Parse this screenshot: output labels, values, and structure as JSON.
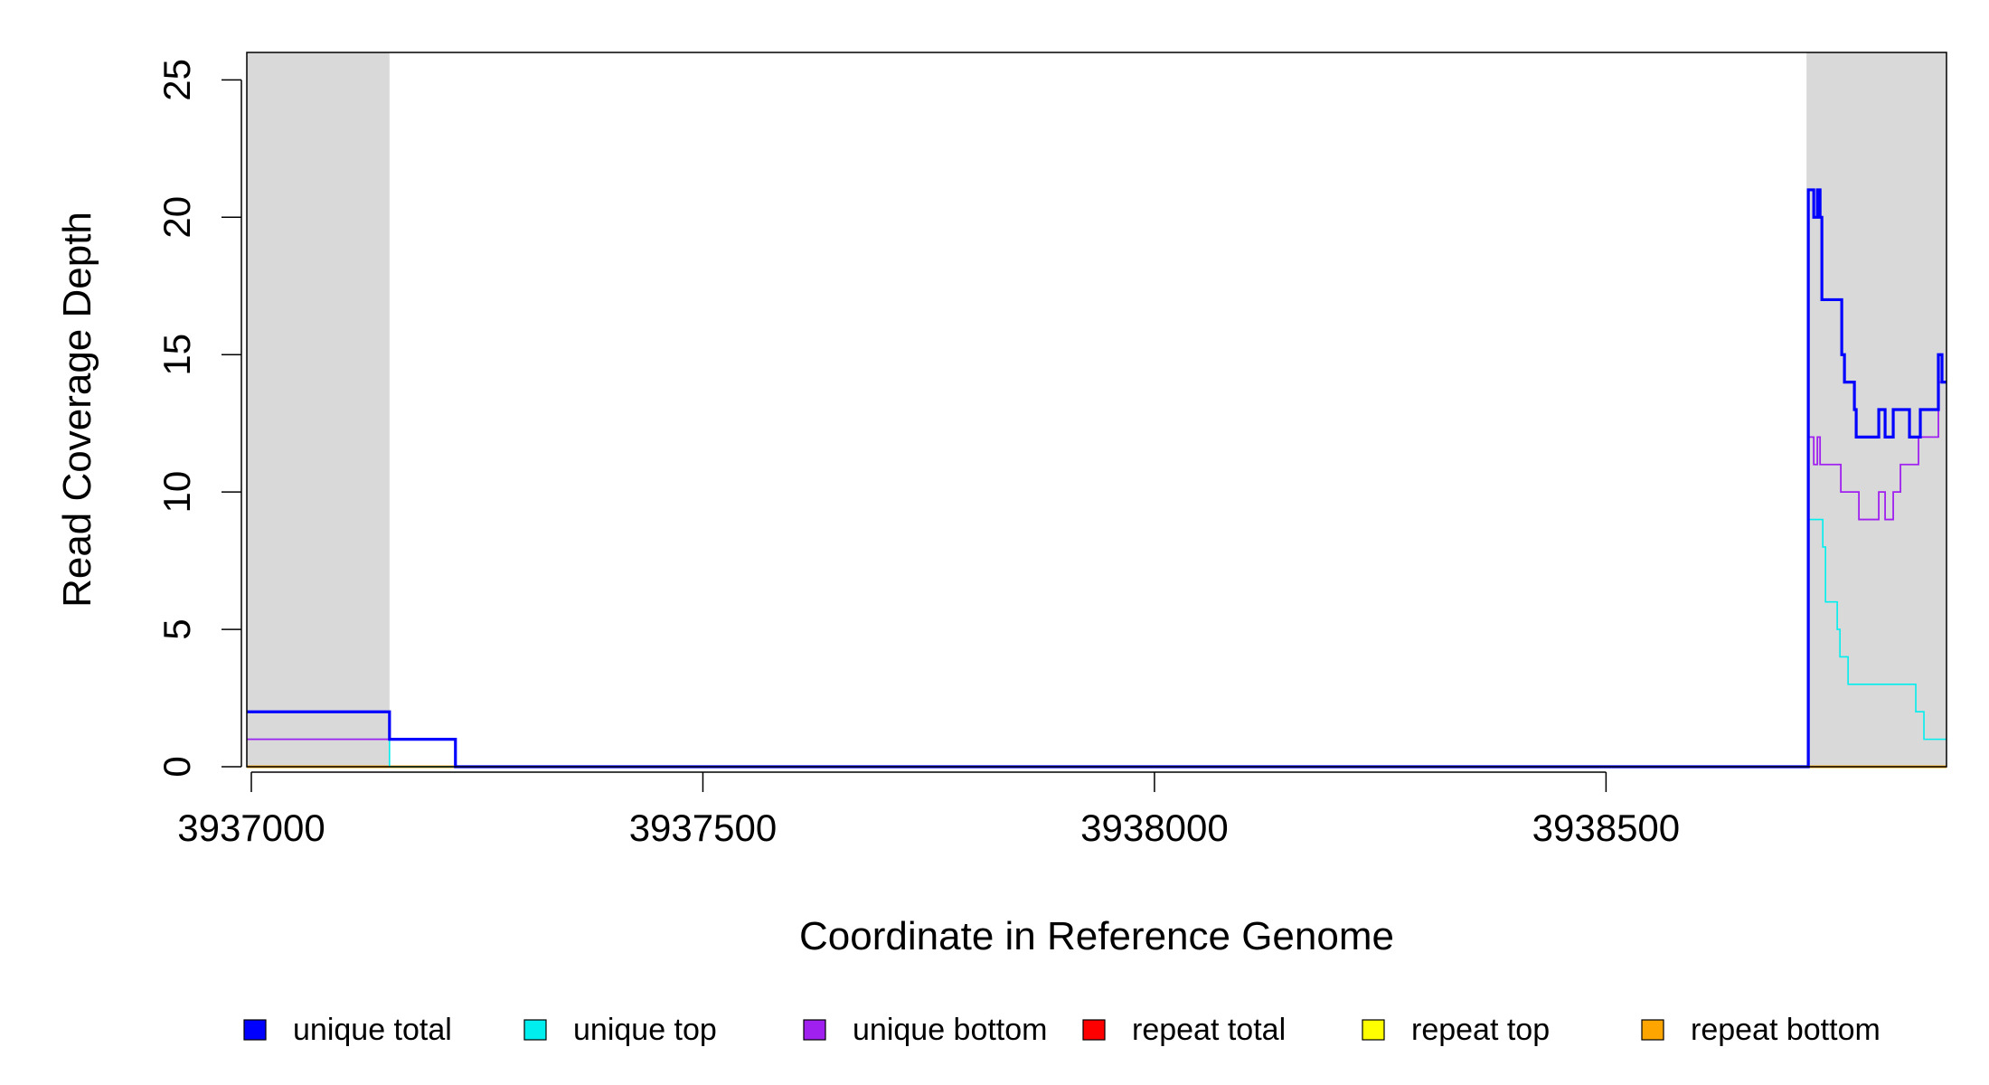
{
  "chart_data": {
    "type": "line",
    "title": "",
    "xlabel": "Coordinate in Reference Genome",
    "ylabel": "Read Coverage Depth",
    "xlim": [
      3936995,
      3938877
    ],
    "ylim": [
      0,
      26
    ],
    "x_ticks": [
      3937000,
      3937500,
      3938000,
      3938500
    ],
    "x_tick_labels": [
      "3937000",
      "3937500",
      "3938000",
      "3938500"
    ],
    "y_ticks": [
      0,
      5,
      10,
      15,
      20,
      25
    ],
    "y_tick_labels": [
      "0",
      "5",
      "10",
      "15",
      "20",
      "25"
    ],
    "shaded_regions": [
      {
        "x0": 3936995,
        "x1": 3937153
      },
      {
        "x0": 3938722,
        "x1": 3938877
      }
    ],
    "grid": false,
    "legend_position": "bottom",
    "step_plot": true,
    "series": [
      {
        "name": "unique total",
        "color": "#0000ff",
        "x": [
          3936995,
          3937153,
          3937226,
          3938723,
          3938724,
          3938730,
          3938734,
          3938737,
          3938739,
          3938744,
          3938761,
          3938764,
          3938775,
          3938777,
          3938780,
          3938802,
          3938809,
          3938818,
          3938836,
          3938848,
          3938868,
          3938872,
          3938877
        ],
        "values": [
          2,
          1,
          0,
          0,
          21,
          20,
          21,
          20,
          17,
          17,
          15,
          14,
          13,
          12,
          12,
          13,
          12,
          13,
          12,
          13,
          15,
          14,
          14
        ]
      },
      {
        "name": "unique top",
        "color": "#00eeee",
        "x": [
          3936995,
          3937153,
          3938723,
          3938724,
          3938740,
          3938743,
          3938756,
          3938759,
          3938768,
          3938777,
          3938843,
          3938852,
          3938877
        ],
        "values": [
          1,
          0,
          0,
          9,
          8,
          6,
          5,
          4,
          3,
          3,
          2,
          1,
          1
        ]
      },
      {
        "name": "unique bottom",
        "color": "#a020f0",
        "x": [
          3936995,
          3937153,
          3937226,
          3938723,
          3938724,
          3938730,
          3938734,
          3938737,
          3938742,
          3938760,
          3938780,
          3938802,
          3938809,
          3938818,
          3938826,
          3938846,
          3938868,
          3938877
        ],
        "values": [
          1,
          1,
          0,
          0,
          12,
          11,
          12,
          11,
          11,
          10,
          9,
          10,
          9,
          10,
          11,
          12,
          14,
          14
        ]
      },
      {
        "name": "repeat total",
        "color": "#ff0000",
        "x": [
          3936995,
          3938877
        ],
        "values": [
          0,
          0
        ]
      },
      {
        "name": "repeat top",
        "color": "#ffff00",
        "x": [
          3936995,
          3938877
        ],
        "values": [
          0,
          0
        ]
      },
      {
        "name": "repeat bottom",
        "color": "#ffa500",
        "x": [
          3936995,
          3938877
        ],
        "values": [
          0,
          0
        ]
      }
    ]
  }
}
